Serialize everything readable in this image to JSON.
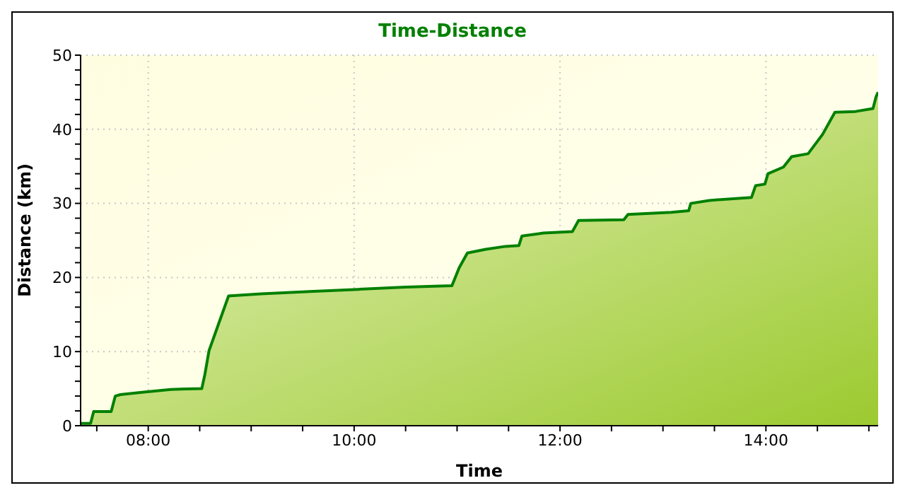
{
  "chart_data": {
    "type": "area",
    "title": "Time-Distance",
    "xlabel": "Time",
    "ylabel": "Distance (km)",
    "x": [
      7.343,
      7.44,
      7.47,
      7.64,
      7.68,
      7.73,
      7.94,
      8.22,
      8.52,
      8.55,
      8.59,
      8.69,
      8.78,
      9.1,
      9.57,
      10.04,
      10.5,
      10.95,
      11.02,
      11.1,
      11.28,
      11.47,
      11.6,
      11.63,
      11.84,
      12.12,
      12.18,
      12.62,
      12.66,
      13.08,
      13.25,
      13.27,
      13.45,
      13.86,
      13.9,
      13.99,
      14.02,
      14.17,
      14.25,
      14.41,
      14.55,
      14.67,
      14.87,
      15.04,
      15.07,
      15.09
    ],
    "series": [
      {
        "color": "#008000",
        "values": [
          0.3,
          0.3,
          1.9,
          1.9,
          4.0,
          4.2,
          4.5,
          4.9,
          5.0,
          6.9,
          10.1,
          14.0,
          17.5,
          17.8,
          18.1,
          18.4,
          18.7,
          18.9,
          21.3,
          23.3,
          23.8,
          24.2,
          24.3,
          25.6,
          26.0,
          26.2,
          27.7,
          27.8,
          28.5,
          28.8,
          29.0,
          30.0,
          30.4,
          30.8,
          32.4,
          32.6,
          34.0,
          34.9,
          36.3,
          36.7,
          39.3,
          42.3,
          42.4,
          42.8,
          44.4,
          45.0
        ]
      }
    ],
    "xlim": [
      7.343,
      15.09
    ],
    "xticks": [
      {
        "value": 7.5,
        "label": null
      },
      {
        "value": 8,
        "label": "08:00"
      },
      {
        "value": 8.5,
        "label": null
      },
      {
        "value": 9,
        "label": null
      },
      {
        "value": 9.5,
        "label": null
      },
      {
        "value": 10,
        "label": "10:00"
      },
      {
        "value": 10.5,
        "label": null
      },
      {
        "value": 11,
        "label": null
      },
      {
        "value": 11.5,
        "label": null
      },
      {
        "value": 12,
        "label": "12:00"
      },
      {
        "value": 12.5,
        "label": null
      },
      {
        "value": 13,
        "label": null
      },
      {
        "value": 13.5,
        "label": null
      },
      {
        "value": 14,
        "label": "14:00"
      },
      {
        "value": 14.5,
        "label": null
      },
      {
        "value": 15,
        "label": null
      }
    ],
    "ylim": [
      0,
      50
    ],
    "yticks": [
      0,
      {
        "value": 2,
        "label": null
      },
      {
        "value": 4,
        "label": null
      },
      {
        "value": 6,
        "label": null
      },
      {
        "value": 8,
        "label": null
      },
      10,
      {
        "value": 12,
        "label": null
      },
      {
        "value": 14,
        "label": null
      },
      {
        "value": 16,
        "label": null
      },
      {
        "value": 18,
        "label": null
      },
      20,
      {
        "value": 22,
        "label": null
      },
      {
        "value": 24,
        "label": null
      },
      {
        "value": 26,
        "label": null
      },
      {
        "value": 28,
        "label": null
      },
      30,
      {
        "value": 32,
        "label": null
      },
      {
        "value": 34,
        "label": null
      },
      {
        "value": 36,
        "label": null
      },
      {
        "value": 38,
        "label": null
      },
      40,
      {
        "value": 42,
        "label": null
      },
      {
        "value": 44,
        "label": null
      },
      {
        "value": 46,
        "label": null
      },
      {
        "value": 48,
        "label": null
      },
      50
    ],
    "grid": true
  }
}
